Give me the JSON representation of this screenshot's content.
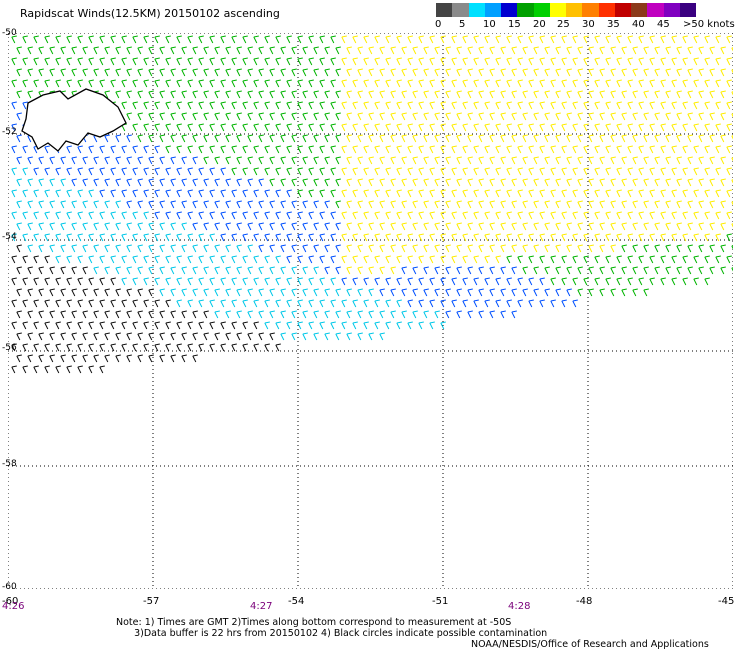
{
  "title": "Rapidscat Winds(12.5KM) 20150102 ascending",
  "colorbar": {
    "labels": [
      "0",
      "5",
      "10",
      "15",
      "20",
      "25",
      "30",
      "35",
      "40",
      "45",
      ">50 knots"
    ],
    "colors": [
      "#444444",
      "#8a8a8a",
      "#00e0ff",
      "#00a0ff",
      "#0000d0",
      "#00a000",
      "#00d000",
      "#ffff00",
      "#ffc000",
      "#ff8000",
      "#ff3000",
      "#c00000",
      "#8b3a1a",
      "#c000c0",
      "#8000c0",
      "#3a0080"
    ]
  },
  "map": {
    "lat_labels": [
      "-50",
      "-52",
      "-54",
      "-56",
      "-58",
      "-60"
    ],
    "lon_labels": [
      "-60",
      "-57",
      "-54",
      "-51",
      "-48",
      "-45"
    ],
    "time_labels": [
      "4:26",
      "4:27",
      "4:28"
    ]
  },
  "note": "Note: 1) Times are GMT 2)Times along bottom correspond to measurement at -50S\n      3)Data buffer is 22 hrs from 20150102 4) Black circles indicate possible contamination",
  "credit": "NOAA/NESDIS/Office of Research and Applications"
}
